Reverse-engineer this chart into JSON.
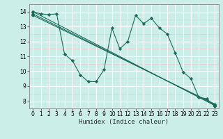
{
  "xlabel": "Humidex (Indice chaleur)",
  "bg_color": "#cceee8",
  "grid_major_color": "#ffffff",
  "grid_minor_color": "#e8c8c8",
  "line_color": "#1a6b5a",
  "xlim": [
    -0.5,
    23.5
  ],
  "ylim": [
    7.5,
    14.5
  ],
  "xticks": [
    0,
    1,
    2,
    3,
    4,
    5,
    6,
    7,
    8,
    9,
    10,
    11,
    12,
    13,
    14,
    15,
    16,
    17,
    18,
    19,
    20,
    21,
    22,
    23
  ],
  "yticks": [
    8,
    9,
    10,
    11,
    12,
    13,
    14
  ],
  "lines": [
    {
      "x": [
        0,
        1,
        2,
        3,
        4,
        5,
        6,
        7,
        8,
        9,
        10,
        11,
        12,
        13,
        14,
        15,
        16,
        17,
        18,
        19,
        20,
        21,
        22,
        23
      ],
      "y": [
        14.0,
        13.85,
        13.8,
        13.85,
        11.15,
        10.7,
        9.75,
        9.3,
        9.3,
        10.1,
        12.9,
        11.5,
        12.0,
        13.75,
        13.2,
        13.55,
        12.9,
        12.5,
        11.25,
        9.95,
        9.5,
        8.25,
        8.15,
        7.65
      ]
    },
    {
      "x": [
        0,
        23
      ],
      "y": [
        14.0,
        7.7
      ]
    },
    {
      "x": [
        0,
        23
      ],
      "y": [
        13.85,
        7.75
      ]
    },
    {
      "x": [
        0,
        23
      ],
      "y": [
        13.75,
        7.8
      ]
    }
  ]
}
